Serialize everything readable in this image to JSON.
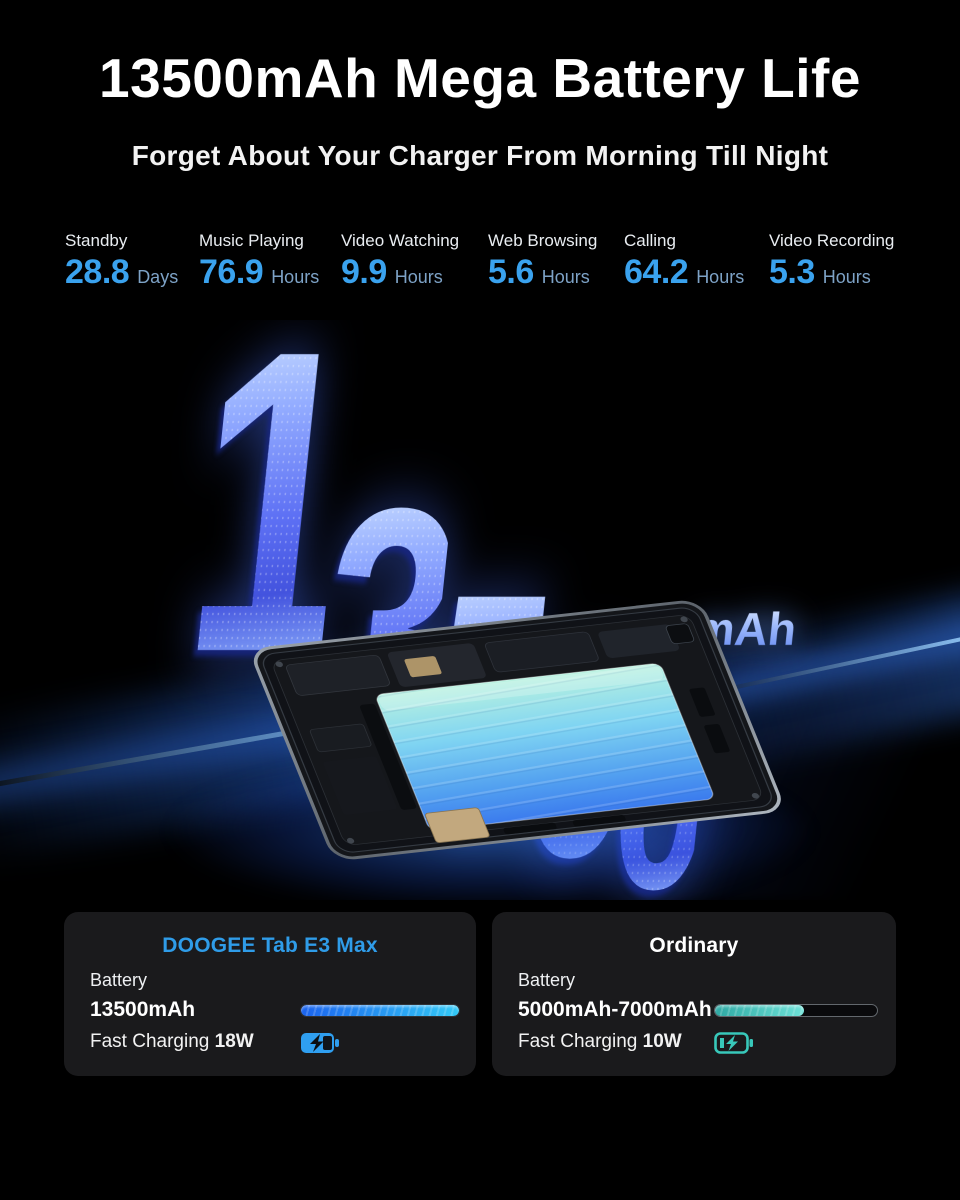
{
  "header": {
    "title": "13500mAh Mega Battery Life",
    "subtitle": "Forget About Your Charger From Morning Till Night"
  },
  "stats": [
    {
      "label": "Standby",
      "value": "28.8",
      "unit": "Days"
    },
    {
      "label": "Music Playing",
      "value": "76.9",
      "unit": "Hours"
    },
    {
      "label": "Video Watching",
      "value": "9.9",
      "unit": "Hours"
    },
    {
      "label": "Web Browsing",
      "value": "5.6",
      "unit": "Hours"
    },
    {
      "label": "Calling",
      "value": "64.2",
      "unit": "Hours"
    },
    {
      "label": "Video Recording",
      "value": "5.3",
      "unit": "Hours"
    }
  ],
  "hero": {
    "digits": [
      "1",
      "3",
      "5",
      "0",
      "0"
    ],
    "unit": "mAh"
  },
  "comparison": {
    "doogee": {
      "title": "DOOGEE Tab E3 Max",
      "battery_label": "Battery",
      "battery_value": "13500mAh",
      "charging_label": "Fast Charging",
      "charging_value": "18W",
      "bar_percent": 100
    },
    "ordinary": {
      "title": "Ordinary",
      "battery_label": "Battery",
      "battery_value": "5000mAh-7000mAh",
      "charging_label": "Fast Charging",
      "charging_value": "10W",
      "bar_percent": 55
    }
  },
  "colors": {
    "stat_value_blue": "#3aa2ee",
    "stat_unit_gray_blue": "#7da2c6",
    "doogee_title_blue": "#2f9ce8",
    "card_background": "#1a1a1c",
    "bar_blue_gradient": [
      "#1b63ee",
      "#33c9f6"
    ],
    "bar_teal_gradient": [
      "#2fa9a4",
      "#6ee2d8"
    ],
    "hero_digit_blue": "#5d70f4",
    "battery_icon_blue": "#2f9ff0",
    "battery_icon_teal": "#38c8ba"
  }
}
